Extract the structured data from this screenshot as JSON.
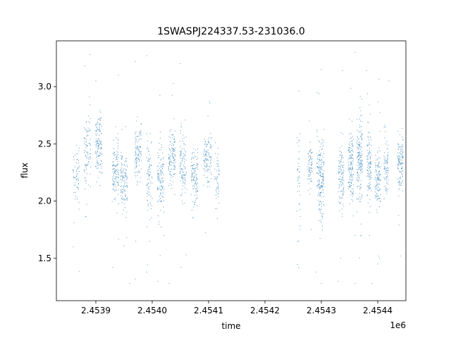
{
  "chart_data": {
    "type": "scatter",
    "title": "1SWASPJ224337.53-231036.0",
    "xlabel": "time",
    "ylabel": "flux",
    "x_offset_label": "1e6",
    "xlim": [
      2.45383,
      2.45445
    ],
    "ylim": [
      1.13,
      3.4
    ],
    "x_ticks": [
      2.4539,
      2.454,
      2.4541,
      2.4542,
      2.4543,
      2.4544
    ],
    "x_tick_labels": [
      "2.4539",
      "2.4540",
      "2.4541",
      "2.4542",
      "2.4543",
      "2.4544"
    ],
    "y_ticks": [
      1.5,
      2.0,
      2.5,
      3.0
    ],
    "y_tick_labels": [
      "1.5",
      "2.0",
      "2.5",
      "3.0"
    ],
    "marker_color": "#1f77b4",
    "grid": false,
    "season_clusters": [
      {
        "x_center": 2.453865,
        "x_width": 1.2e-05,
        "center_y": 2.23,
        "spread": 0.12,
        "count": 60
      },
      {
        "x_center": 2.453885,
        "x_width": 1.2e-05,
        "center_y": 2.42,
        "spread": 0.15,
        "count": 90
      },
      {
        "x_center": 2.453905,
        "x_width": 1.2e-05,
        "center_y": 2.5,
        "spread": 0.14,
        "count": 130
      },
      {
        "x_center": 2.453935,
        "x_width": 1.2e-05,
        "center_y": 2.26,
        "spread": 0.12,
        "count": 120
      },
      {
        "x_center": 2.45395,
        "x_width": 1.2e-05,
        "center_y": 2.18,
        "spread": 0.12,
        "count": 120
      },
      {
        "x_center": 2.453975,
        "x_width": 1.2e-05,
        "center_y": 2.42,
        "spread": 0.13,
        "count": 110
      },
      {
        "x_center": 2.453995,
        "x_width": 1e-05,
        "center_y": 2.22,
        "spread": 0.16,
        "count": 80
      },
      {
        "x_center": 2.454015,
        "x_width": 1.2e-05,
        "center_y": 2.2,
        "spread": 0.13,
        "count": 120
      },
      {
        "x_center": 2.454035,
        "x_width": 1.2e-05,
        "center_y": 2.36,
        "spread": 0.12,
        "count": 120
      },
      {
        "x_center": 2.454055,
        "x_width": 1.2e-05,
        "center_y": 2.3,
        "spread": 0.14,
        "count": 110
      },
      {
        "x_center": 2.454075,
        "x_width": 1.2e-05,
        "center_y": 2.22,
        "spread": 0.13,
        "count": 110
      },
      {
        "x_center": 2.454098,
        "x_width": 1.4e-05,
        "center_y": 2.38,
        "spread": 0.12,
        "count": 110
      },
      {
        "x_center": 2.454115,
        "x_width": 8e-06,
        "center_y": 2.2,
        "spread": 0.12,
        "count": 50
      },
      {
        "x_center": 2.45426,
        "x_width": 6e-06,
        "center_y": 2.15,
        "spread": 0.25,
        "count": 40
      },
      {
        "x_center": 2.45428,
        "x_width": 8e-06,
        "center_y": 2.3,
        "spread": 0.1,
        "count": 70
      },
      {
        "x_center": 2.454295,
        "x_width": 6e-06,
        "center_y": 2.22,
        "spread": 0.14,
        "count": 50
      },
      {
        "x_center": 2.4543,
        "x_width": 1e-05,
        "center_y": 2.18,
        "spread": 0.18,
        "count": 140
      },
      {
        "x_center": 2.454335,
        "x_width": 1e-05,
        "center_y": 2.22,
        "spread": 0.13,
        "count": 110
      },
      {
        "x_center": 2.454352,
        "x_width": 1e-05,
        "center_y": 2.3,
        "spread": 0.14,
        "count": 140
      },
      {
        "x_center": 2.454368,
        "x_width": 1e-05,
        "center_y": 2.38,
        "spread": 0.16,
        "count": 170
      },
      {
        "x_center": 2.454385,
        "x_width": 8e-06,
        "center_y": 2.28,
        "spread": 0.15,
        "count": 110
      },
      {
        "x_center": 2.4544,
        "x_width": 1e-05,
        "center_y": 2.18,
        "spread": 0.14,
        "count": 110
      },
      {
        "x_center": 2.454415,
        "x_width": 8e-06,
        "center_y": 2.26,
        "spread": 0.14,
        "count": 80
      },
      {
        "x_center": 2.45444,
        "x_width": 1e-05,
        "center_y": 2.34,
        "spread": 0.12,
        "count": 120
      }
    ],
    "outliers": [
      {
        "x": 2.45389,
        "y": 3.28
      },
      {
        "x": 2.4539,
        "y": 3.05
      },
      {
        "x": 2.45386,
        "y": 1.6
      },
      {
        "x": 2.45393,
        "y": 1.42
      },
      {
        "x": 2.45394,
        "y": 3.1
      },
      {
        "x": 2.45396,
        "y": 1.28
      },
      {
        "x": 2.45397,
        "y": 1.32
      },
      {
        "x": 2.45397,
        "y": 3.22
      },
      {
        "x": 2.45399,
        "y": 1.38
      },
      {
        "x": 2.45399,
        "y": 3.27
      },
      {
        "x": 2.45401,
        "y": 1.3
      },
      {
        "x": 2.45403,
        "y": 1.28
      },
      {
        "x": 2.45405,
        "y": 3.2
      },
      {
        "x": 2.45406,
        "y": 1.53
      },
      {
        "x": 2.45426,
        "y": 2.96
      },
      {
        "x": 2.45426,
        "y": 1.42
      },
      {
        "x": 2.45429,
        "y": 1.38
      },
      {
        "x": 2.4543,
        "y": 3.15
      },
      {
        "x": 2.4543,
        "y": 1.28
      },
      {
        "x": 2.45433,
        "y": 1.3
      },
      {
        "x": 2.45436,
        "y": 1.28
      },
      {
        "x": 2.45436,
        "y": 3.3
      },
      {
        "x": 2.45436,
        "y": 1.7
      },
      {
        "x": 2.45438,
        "y": 3.14
      },
      {
        "x": 2.45439,
        "y": 1.28
      },
      {
        "x": 2.4544,
        "y": 1.45
      },
      {
        "x": 2.45442,
        "y": 3.05
      },
      {
        "x": 2.45444,
        "y": 1.52
      }
    ]
  }
}
